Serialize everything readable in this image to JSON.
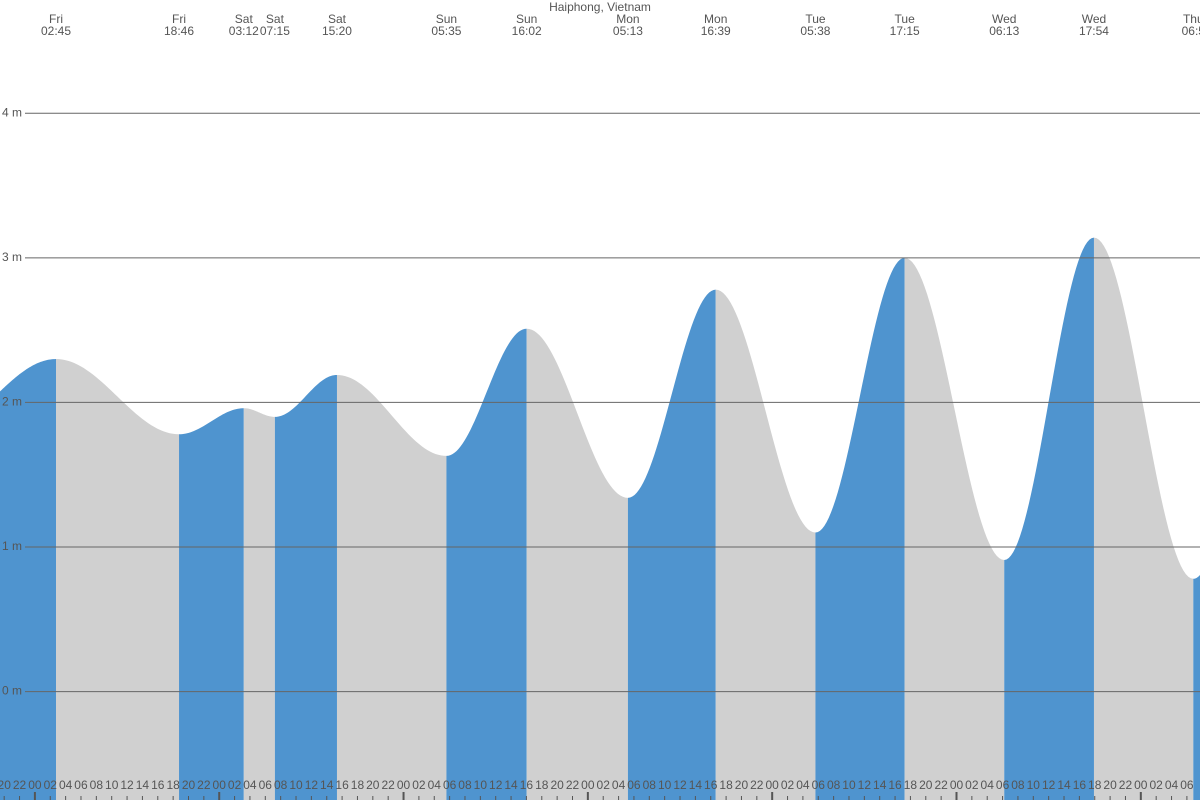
{
  "chart_data": {
    "type": "tide-area",
    "title": "Haiphong, Vietnam",
    "days": [
      "Fri",
      "Fri",
      "Sat",
      "Sat",
      "Sat",
      "Sun",
      "Sun",
      "Mon",
      "Mon",
      "Tue",
      "Tue",
      "Wed",
      "Wed",
      "Thu"
    ],
    "times": [
      "02:45",
      "18:46",
      "03:12",
      "07:15",
      "15:20",
      "05:35",
      "16:02",
      "05:13",
      "16:39",
      "05:38",
      "17:15",
      "06:13",
      "17:54",
      "06:5"
    ],
    "values": [
      2.3,
      1.78,
      1.96,
      1.9,
      2.19,
      1.63,
      2.51,
      1.34,
      2.78,
      1.1,
      3.0,
      0.91,
      3.14,
      0.78
    ],
    "rising_color": "#4f94cf",
    "falling_color": "#d0d0d0",
    "ylim": [
      -0.75,
      4.5
    ],
    "yticks": [
      {
        "value": 0,
        "label": "0 m"
      },
      {
        "value": 1,
        "label": "1 m"
      },
      {
        "value": 2,
        "label": "2 m"
      },
      {
        "value": 3,
        "label": "3 m"
      },
      {
        "value": 4,
        "label": "4 m"
      }
    ],
    "grid": true,
    "hour_labels": [
      "20",
      "22",
      "00",
      "02",
      "04",
      "06",
      "08",
      "10",
      "12",
      "14",
      "16",
      "18",
      "20",
      "22",
      "00",
      "02",
      "04",
      "06",
      "08",
      "10",
      "12",
      "14",
      "16",
      "18",
      "20",
      "22",
      "00",
      "02",
      "04",
      "06",
      "08",
      "10",
      "12",
      "14",
      "16",
      "18",
      "20",
      "22",
      "00",
      "02",
      "04",
      "06",
      "08",
      "10",
      "12",
      "14",
      "16",
      "18",
      "20",
      "22",
      "00",
      "02",
      "04",
      "06",
      "08",
      "10",
      "12",
      "14",
      "16",
      "18",
      "20",
      "22",
      "00",
      "02",
      "04",
      "06",
      "08",
      "10",
      "12",
      "14",
      "16",
      "18",
      "20",
      "22",
      "00",
      "02",
      "04",
      "06"
    ]
  }
}
